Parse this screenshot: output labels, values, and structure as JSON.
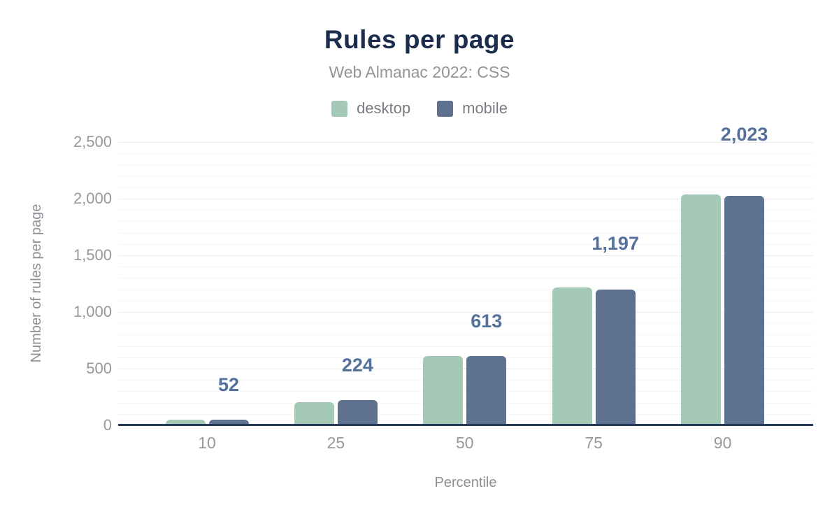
{
  "header": {
    "title": "Rules per page",
    "subtitle": "Web Almanac 2022: CSS"
  },
  "legend": {
    "items": [
      {
        "label": "desktop",
        "color": "#a5c9b7"
      },
      {
        "label": "mobile",
        "color": "#5f7191"
      }
    ]
  },
  "chart_data": {
    "type": "bar",
    "title": "Rules per page",
    "subtitle": "Web Almanac 2022: CSS",
    "categories": [
      "10",
      "25",
      "50",
      "75",
      "90"
    ],
    "series": [
      {
        "name": "desktop",
        "color": "#a5c9b7",
        "values": [
          49,
          205,
          610,
          1215,
          2040
        ]
      },
      {
        "name": "mobile",
        "color": "#5f7191",
        "values": [
          52,
          224,
          613,
          1197,
          2023
        ]
      }
    ],
    "value_labels": {
      "series": "mobile",
      "texts": [
        "52",
        "224",
        "613",
        "1,197",
        "2,023"
      ],
      "color": "#55719b"
    },
    "xlabel": "Percentile",
    "ylabel": "Number of rules per page",
    "ylim": [
      0,
      2500
    ],
    "yticks": [
      {
        "value": 0,
        "label": "0"
      },
      {
        "value": 500,
        "label": "500"
      },
      {
        "value": 1000,
        "label": "1,000"
      },
      {
        "value": 1500,
        "label": "1,500"
      },
      {
        "value": 2000,
        "label": "2,000"
      },
      {
        "value": 2500,
        "label": "2,500"
      }
    ],
    "grid": {
      "minor_step": 100,
      "major_step": 500,
      "minor_color": "#f5f5f7",
      "major_color": "#ebebee"
    },
    "axis_line_color": "#24395b",
    "tick_label_color": "#97979e",
    "axis_title_color": "#8e8e95",
    "legend_position": "top",
    "grid_on": true
  }
}
